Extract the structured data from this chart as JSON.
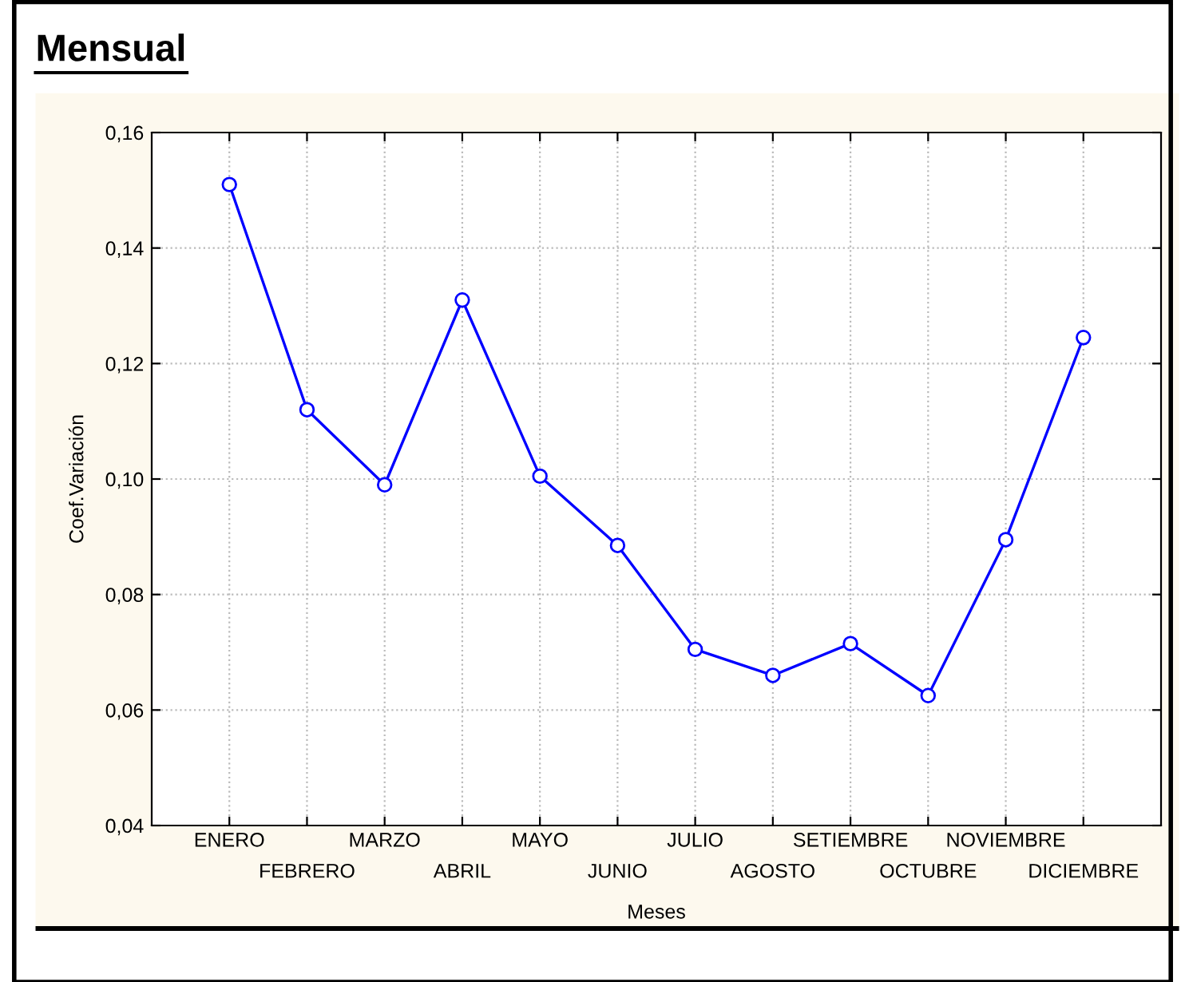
{
  "chart_data": {
    "type": "line",
    "title": "Mensual",
    "xlabel": "Meses",
    "ylabel": "Coef.Variación",
    "categories": [
      "ENERO",
      "FEBRERO",
      "MARZO",
      "ABRIL",
      "MAYO",
      "JUNIO",
      "JULIO",
      "AGOSTO",
      "SETIEMBRE",
      "OCTUBRE",
      "NOVIEMBRE",
      "DICIEMBRE"
    ],
    "series": [
      {
        "color": "#0000ff",
        "values": [
          0.151,
          0.112,
          0.099,
          0.131,
          0.1005,
          0.0885,
          0.0705,
          0.066,
          0.0715,
          0.0625,
          0.0895,
          0.1245
        ]
      }
    ],
    "ylim": [
      0.04,
      0.16
    ],
    "yticks": [
      {
        "value": 0.04,
        "label": "0,04"
      },
      {
        "value": 0.06,
        "label": "0,06"
      },
      {
        "value": 0.08,
        "label": "0,08"
      },
      {
        "value": 0.1,
        "label": "0,10"
      },
      {
        "value": 0.12,
        "label": "0,12"
      },
      {
        "value": 0.14,
        "label": "0,14"
      },
      {
        "value": 0.16,
        "label": "0,16"
      }
    ],
    "grid": true,
    "marker": "circle",
    "line_style": "solid",
    "legend": false
  }
}
